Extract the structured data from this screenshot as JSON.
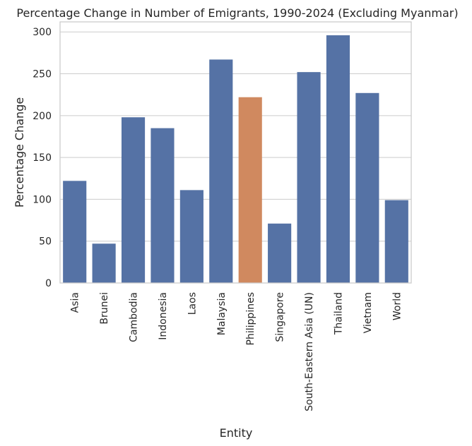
{
  "chart_data": {
    "type": "bar",
    "title": "Percentage Change in Number of Emigrants, 1990-2024 (Excluding Myanmar)",
    "xlabel": "Entity",
    "ylabel": "Percentage Change",
    "categories": [
      "Asia",
      "Brunei",
      "Cambodia",
      "Indonesia",
      "Laos",
      "Malaysia",
      "Philippines",
      "Singapore",
      "South-Eastern Asia (UN)",
      "Thailand",
      "Vietnam",
      "World"
    ],
    "values": [
      122,
      47,
      198,
      185,
      111,
      267,
      222,
      71,
      252,
      296,
      227,
      99
    ],
    "highlight_category": "Philippines",
    "colors": {
      "default": "#5572a5",
      "highlight": "#d0895f"
    },
    "ylim": [
      0,
      312
    ],
    "yticks": [
      0,
      50,
      100,
      150,
      200,
      250,
      300
    ],
    "grid": "horizontal"
  }
}
